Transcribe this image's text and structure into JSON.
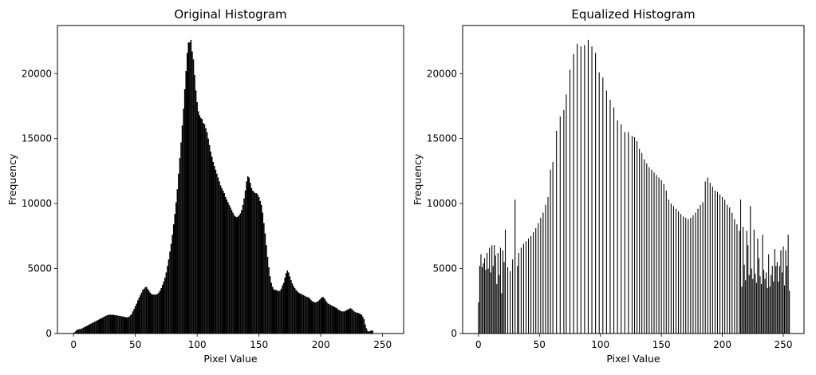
{
  "chart_data": [
    {
      "type": "bar",
      "title": "Original Histogram",
      "xlabel": "Pixel Value",
      "ylabel": "Frequency",
      "xlim": [
        -13,
        267
      ],
      "ylim": [
        0,
        23700
      ],
      "xticks": [
        0,
        50,
        100,
        150,
        200,
        250
      ],
      "yticks": [
        0,
        5000,
        10000,
        15000,
        20000
      ],
      "grid": false,
      "color": "#000000",
      "bin_width": 1,
      "x_start": 0,
      "values": [
        50,
        100,
        200,
        300,
        300,
        350,
        350,
        400,
        450,
        500,
        550,
        600,
        650,
        700,
        750,
        800,
        850,
        900,
        950,
        1000,
        1050,
        1100,
        1150,
        1200,
        1250,
        1300,
        1350,
        1400,
        1420,
        1450,
        1450,
        1420,
        1450,
        1420,
        1400,
        1400,
        1380,
        1350,
        1350,
        1320,
        1300,
        1300,
        1250,
        1250,
        1250,
        1300,
        1400,
        1500,
        1700,
        1900,
        2100,
        2300,
        2550,
        2750,
        2950,
        3150,
        3350,
        3450,
        3550,
        3600,
        3450,
        3300,
        3150,
        3050,
        3000,
        3000,
        3000,
        3000,
        3050,
        3150,
        3300,
        3500,
        3750,
        4000,
        4300,
        4700,
        5200,
        5700,
        6300,
        6900,
        7600,
        8400,
        9200,
        10100,
        11100,
        12300,
        13500,
        14700,
        16000,
        17300,
        18800,
        20200,
        21600,
        22400,
        22400,
        22600,
        21700,
        21100,
        19900,
        18700,
        17800,
        17100,
        16800,
        16600,
        16500,
        16200,
        16100,
        15800,
        15500,
        15000,
        14500,
        14000,
        13600,
        13200,
        12900,
        12600,
        12300,
        12000,
        11700,
        11400,
        11200,
        11000,
        10800,
        10500,
        10300,
        10100,
        9900,
        9700,
        9500,
        9300,
        9100,
        9000,
        8950,
        9000,
        9100,
        9250,
        9500,
        9900,
        10400,
        11000,
        11700,
        12100,
        12000,
        11600,
        11200,
        11000,
        10900,
        10800,
        10800,
        10700,
        10500,
        10200,
        9900,
        9300,
        8500,
        7700,
        6800,
        5900,
        5100,
        4400,
        3900,
        3600,
        3400,
        3350,
        3350,
        3300,
        3250,
        3300,
        3450,
        3700,
        3900,
        4300,
        4650,
        4850,
        4700,
        4400,
        4100,
        3850,
        3650,
        3500,
        3350,
        3250,
        3150,
        3100,
        3050,
        3000,
        2950,
        2900,
        2850,
        2800,
        2800,
        2700,
        2600,
        2500,
        2450,
        2400,
        2400,
        2450,
        2500,
        2600,
        2700,
        2800,
        2800,
        2700,
        2550,
        2400,
        2300,
        2250,
        2200,
        2150,
        2100,
        2050,
        2000,
        1950,
        1850,
        1800,
        1750,
        1700,
        1700,
        1700,
        1750,
        1800,
        1850,
        1900,
        1950,
        1900,
        1800,
        1700,
        1650,
        1600,
        1600,
        1550,
        1500,
        1450,
        1300,
        1100,
        700,
        400,
        200,
        150,
        200,
        250,
        200
      ]
    },
    {
      "type": "bar",
      "title": "Equalized Histogram",
      "xlabel": "Pixel Value",
      "ylabel": "Frequency",
      "xlim": [
        -13,
        267
      ],
      "ylim": [
        0,
        23700
      ],
      "xticks": [
        0,
        50,
        100,
        150,
        200,
        250
      ],
      "yticks": [
        0,
        5000,
        10000,
        15000,
        20000
      ],
      "grid": false,
      "color": "#000000",
      "bin_width": 1,
      "points": [
        [
          0,
          2400
        ],
        [
          1,
          5200
        ],
        [
          2,
          6100
        ],
        [
          3,
          5100
        ],
        [
          4,
          5400
        ],
        [
          5,
          5800
        ],
        [
          6,
          4900
        ],
        [
          7,
          6200
        ],
        [
          8,
          5000
        ],
        [
          9,
          6600
        ],
        [
          10,
          4700
        ],
        [
          11,
          6800
        ],
        [
          12,
          5200
        ],
        [
          13,
          6800
        ],
        [
          14,
          6000
        ],
        [
          15,
          3800
        ],
        [
          16,
          6200
        ],
        [
          17,
          4500
        ],
        [
          18,
          6600
        ],
        [
          19,
          3100
        ],
        [
          20,
          6400
        ],
        [
          21,
          5500
        ],
        [
          22,
          8000
        ],
        [
          24,
          5100
        ],
        [
          26,
          4800
        ],
        [
          28,
          5700
        ],
        [
          30,
          10300
        ],
        [
          32,
          5200
        ],
        [
          33,
          6200
        ],
        [
          35,
          6600
        ],
        [
          37,
          6900
        ],
        [
          39,
          7100
        ],
        [
          41,
          7300
        ],
        [
          43,
          7500
        ],
        [
          45,
          7800
        ],
        [
          47,
          8100
        ],
        [
          49,
          8500
        ],
        [
          51,
          8900
        ],
        [
          53,
          9300
        ],
        [
          55,
          9900
        ],
        [
          57,
          10500
        ],
        [
          59,
          12600
        ],
        [
          61,
          13200
        ],
        [
          64,
          15600
        ],
        [
          67,
          16700
        ],
        [
          70,
          17200
        ],
        [
          72,
          18400
        ],
        [
          75,
          20300
        ],
        [
          78,
          21500
        ],
        [
          81,
          22300
        ],
        [
          84,
          22100
        ],
        [
          87,
          22200
        ],
        [
          90,
          22600
        ],
        [
          93,
          22100
        ],
        [
          96,
          21600
        ],
        [
          99,
          20100
        ],
        [
          102,
          19700
        ],
        [
          105,
          18700
        ],
        [
          108,
          18000
        ],
        [
          111,
          17400
        ],
        [
          114,
          16400
        ],
        [
          117,
          16100
        ],
        [
          120,
          15500
        ],
        [
          123,
          15500
        ],
        [
          126,
          15200
        ],
        [
          128,
          15100
        ],
        [
          130,
          14800
        ],
        [
          132,
          14200
        ],
        [
          134,
          13900
        ],
        [
          136,
          13400
        ],
        [
          138,
          13100
        ],
        [
          140,
          12800
        ],
        [
          142,
          12600
        ],
        [
          144,
          12400
        ],
        [
          146,
          12200
        ],
        [
          148,
          12000
        ],
        [
          150,
          11800
        ],
        [
          152,
          11500
        ],
        [
          154,
          11000
        ],
        [
          156,
          10300
        ],
        [
          158,
          10000
        ],
        [
          160,
          9800
        ],
        [
          162,
          9600
        ],
        [
          164,
          9400
        ],
        [
          166,
          9200
        ],
        [
          168,
          9000
        ],
        [
          170,
          8900
        ],
        [
          172,
          8800
        ],
        [
          174,
          8900
        ],
        [
          176,
          9100
        ],
        [
          178,
          9300
        ],
        [
          180,
          9600
        ],
        [
          182,
          9900
        ],
        [
          184,
          10100
        ],
        [
          186,
          11700
        ],
        [
          188,
          12000
        ],
        [
          190,
          11600
        ],
        [
          192,
          11300
        ],
        [
          194,
          11000
        ],
        [
          196,
          10900
        ],
        [
          198,
          10700
        ],
        [
          200,
          10500
        ],
        [
          202,
          10300
        ],
        [
          204,
          9900
        ],
        [
          206,
          9700
        ],
        [
          208,
          9300
        ],
        [
          210,
          8800
        ],
        [
          212,
          8400
        ],
        [
          214,
          7900
        ],
        [
          215,
          10300
        ],
        [
          216,
          3600
        ],
        [
          217,
          8200
        ],
        [
          218,
          5300
        ],
        [
          219,
          4100
        ],
        [
          220,
          7900
        ],
        [
          221,
          6800
        ],
        [
          222,
          4500
        ],
        [
          223,
          9800
        ],
        [
          224,
          5000
        ],
        [
          225,
          4200
        ],
        [
          226,
          8000
        ],
        [
          227,
          4600
        ],
        [
          228,
          3900
        ],
        [
          229,
          7300
        ],
        [
          230,
          5800
        ],
        [
          231,
          4400
        ],
        [
          232,
          3800
        ],
        [
          233,
          7600
        ],
        [
          234,
          4900
        ],
        [
          235,
          4200
        ],
        [
          236,
          4700
        ],
        [
          237,
          3500
        ],
        [
          238,
          6100
        ],
        [
          239,
          3600
        ],
        [
          240,
          4500
        ],
        [
          241,
          5200
        ],
        [
          242,
          4000
        ],
        [
          243,
          6500
        ],
        [
          244,
          5200
        ],
        [
          245,
          5500
        ],
        [
          246,
          4000
        ],
        [
          247,
          5200
        ],
        [
          248,
          6400
        ],
        [
          249,
          4700
        ],
        [
          250,
          6700
        ],
        [
          251,
          3700
        ],
        [
          252,
          6400
        ],
        [
          253,
          5200
        ],
        [
          254,
          7600
        ],
        [
          255,
          3300
        ]
      ]
    }
  ]
}
